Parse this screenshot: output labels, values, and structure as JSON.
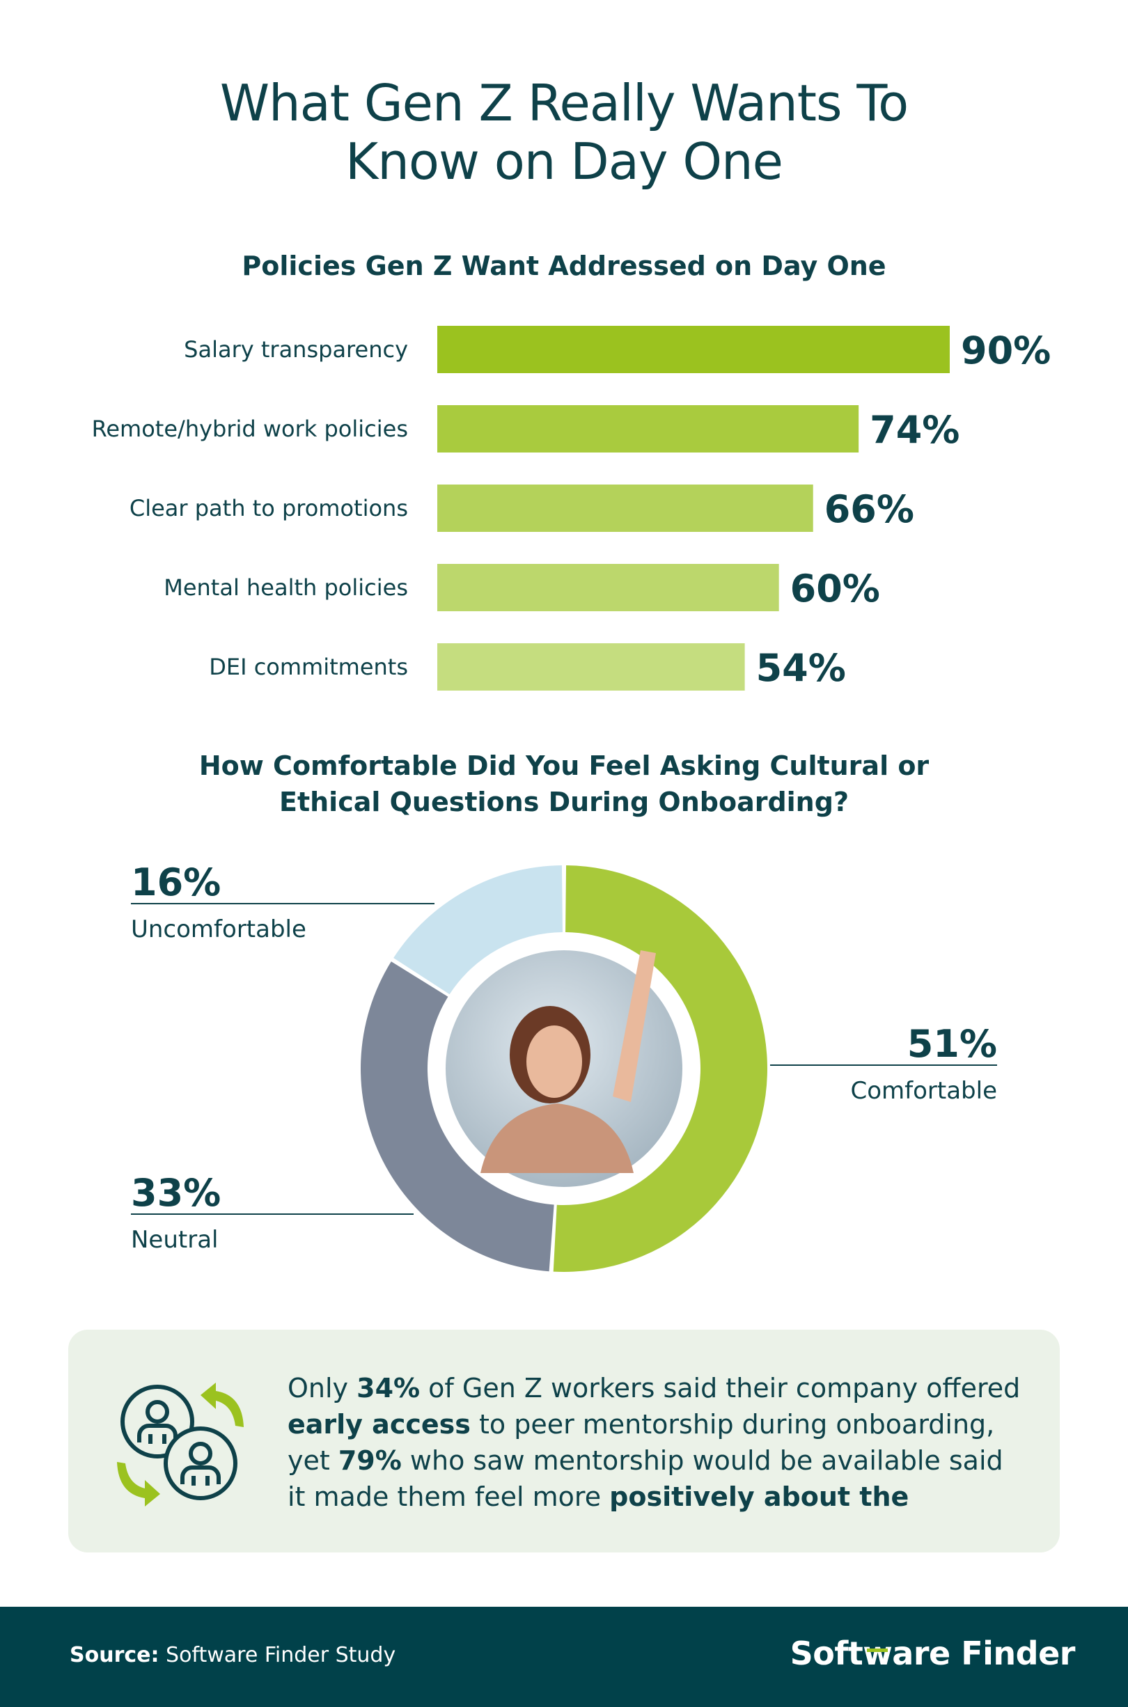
{
  "title_line1": "What Gen Z Really Wants To",
  "title_line2": "Know on Day One",
  "chart_data": [
    {
      "type": "bar",
      "orientation": "horizontal",
      "title": "Policies Gen Z Want Addressed on Day One",
      "categories": [
        "Salary transparency",
        "Remote/hybrid work policies",
        "Clear path to promotions",
        "Mental health policies",
        "DEI commitments"
      ],
      "values": [
        90,
        74,
        66,
        60,
        54
      ],
      "value_labels": [
        "90%",
        "74%",
        "66%",
        "60%",
        "54%"
      ],
      "xlim": [
        0,
        100
      ],
      "colors": [
        "#9bc21f",
        "#a9cb3e",
        "#b4d25a",
        "#bcd76c",
        "#c5dd7f"
      ]
    },
    {
      "type": "pie",
      "variant": "donut",
      "title_line1": "How Comfortable Did You Feel Asking Cultural or",
      "title_line2": "Ethical Questions During Onboarding?",
      "categories": [
        "Comfortable",
        "Neutral",
        "Uncomfortable"
      ],
      "values": [
        51,
        33,
        16
      ],
      "value_labels": [
        "51%",
        "33%",
        "16%"
      ],
      "colors": [
        "#a8c93a",
        "#7d8799",
        "#c9e3ef"
      ]
    }
  ],
  "callout": {
    "part1": "Only ",
    "bold1": "34%",
    "part2": " of Gen Z workers said their company offered ",
    "bold2": "early access",
    "part3": " to peer mentorship during onboarding, yet ",
    "bold3": "79%",
    "part4": " who saw mentorship would be available said it made them feel more ",
    "bold4": "positively about the"
  },
  "footer": {
    "source_label": "Source:",
    "source_text": " Software Finder Study",
    "brand_part1": "Soft",
    "brand_w": "w",
    "brand_part2": "are Finder"
  },
  "colors": {
    "dark_teal": "#0e4149",
    "footer_bg": "#01414a",
    "accent_green": "#9bc21f",
    "callout_bg": "#ebf2e8"
  }
}
